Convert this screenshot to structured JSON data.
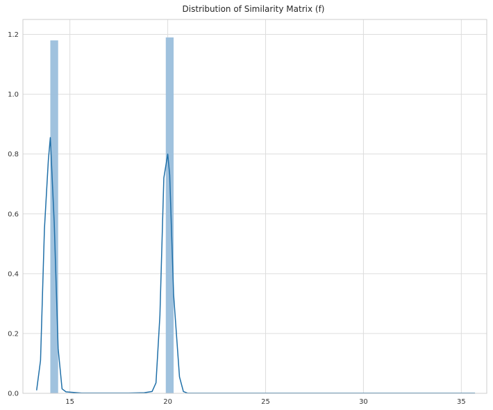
{
  "chart_data": {
    "type": "histogram-kde",
    "title": "Distribution of Similarity Matrix (f)",
    "xlabel": "",
    "ylabel": "",
    "xlim": [
      12.6,
      36.3
    ],
    "ylim": [
      0,
      1.25
    ],
    "x_ticks": [
      15,
      20,
      25,
      30,
      35
    ],
    "y_ticks": [
      0.0,
      0.2,
      0.4,
      0.6,
      0.8,
      1.0,
      1.2
    ],
    "grid": true,
    "histogram": {
      "color": "#9bbfdc",
      "bins": [
        {
          "x0": 14.0,
          "x1": 14.4,
          "height": 1.18
        },
        {
          "x0": 19.9,
          "x1": 20.3,
          "height": 1.19
        }
      ]
    },
    "kde": {
      "color": "#1f6fa8",
      "x": [
        13.3,
        13.5,
        13.7,
        13.9,
        14.0,
        14.2,
        14.4,
        14.6,
        14.8,
        15.2,
        15.6,
        16.0,
        17.0,
        18.0,
        18.8,
        19.2,
        19.4,
        19.6,
        19.8,
        20.0,
        20.1,
        20.3,
        20.6,
        20.8,
        21.0,
        22.0,
        24.0,
        26.0,
        28.0,
        30.0,
        32.0,
        34.0,
        35.7
      ],
      "y": [
        0.01,
        0.11,
        0.55,
        0.78,
        0.855,
        0.57,
        0.15,
        0.015,
        0.005,
        0.003,
        0.001,
        0.001,
        0.001,
        0.001,
        0.002,
        0.006,
        0.035,
        0.26,
        0.72,
        0.8,
        0.73,
        0.33,
        0.055,
        0.006,
        0.001,
        0.0005,
        0.0005,
        0.0005,
        0.0005,
        0.0005,
        0.0005,
        0.0005,
        0.0005
      ]
    }
  }
}
